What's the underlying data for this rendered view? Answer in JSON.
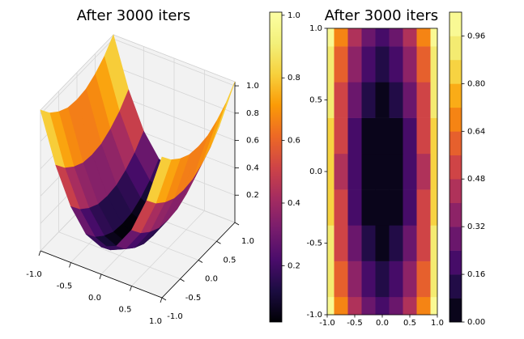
{
  "chart_data": [
    {
      "type": "surface3d",
      "title": "After 3000 iters",
      "colormap": "inferno",
      "x": [
        -1,
        -0.75,
        -0.5,
        -0.25,
        0,
        0.25,
        0.5,
        0.75,
        1
      ],
      "y": [
        -1,
        -0.75,
        -0.5,
        -0.25,
        0,
        0.25,
        0.5,
        0.75,
        1
      ],
      "z": [
        [
          1.03,
          0.67,
          0.41,
          0.25,
          0.2,
          0.25,
          0.41,
          0.67,
          1.03
        ],
        [
          0.94,
          0.58,
          0.32,
          0.16,
          0.11,
          0.16,
          0.32,
          0.58,
          0.94
        ],
        [
          0.88,
          0.52,
          0.26,
          0.1,
          0.05,
          0.1,
          0.26,
          0.52,
          0.88
        ],
        [
          0.84,
          0.48,
          0.22,
          0.06,
          0.01,
          0.06,
          0.22,
          0.48,
          0.84
        ],
        [
          0.83,
          0.47,
          0.21,
          0.05,
          0,
          0.05,
          0.21,
          0.47,
          0.83
        ],
        [
          0.84,
          0.48,
          0.22,
          0.06,
          0.01,
          0.06,
          0.22,
          0.48,
          0.84
        ],
        [
          0.88,
          0.52,
          0.26,
          0.1,
          0.05,
          0.1,
          0.26,
          0.52,
          0.88
        ],
        [
          0.94,
          0.58,
          0.32,
          0.16,
          0.11,
          0.16,
          0.32,
          0.58,
          0.94
        ],
        [
          1.03,
          0.67,
          0.41,
          0.25,
          0.2,
          0.25,
          0.41,
          0.67,
          1.03
        ]
      ],
      "xlim": [
        -1,
        1
      ],
      "ylim": [
        -1,
        1
      ],
      "zlim": [
        0,
        1.03
      ],
      "xticks": [
        {
          "value": -1,
          "label": "-1.0"
        },
        -0.5,
        {
          "value": 0,
          "label": "0.0"
        },
        0.5,
        {
          "value": 1,
          "label": "1.0"
        }
      ],
      "yticks": [
        {
          "value": -1,
          "label": "-1.0"
        },
        -0.5,
        {
          "value": 0,
          "label": "0.0"
        },
        0.5,
        {
          "value": 1,
          "label": "1.0"
        }
      ],
      "zticks": [
        0.2,
        0.4,
        0.6,
        0.8,
        {
          "value": 1,
          "label": "1.0"
        }
      ],
      "colorbar": {
        "lim": [
          0.02,
          1.01
        ],
        "ticks": [
          0.2,
          0.4,
          0.6,
          0.8,
          {
            "value": 1,
            "label": "1.0"
          }
        ]
      }
    },
    {
      "type": "contourf",
      "title": "After 3000 iters",
      "colormap": "inferno",
      "x": [
        -1,
        -0.75,
        -0.5,
        -0.25,
        0,
        0.25,
        0.5,
        0.75,
        1
      ],
      "y": [
        -1,
        -0.75,
        -0.5,
        -0.25,
        0,
        0.25,
        0.5,
        0.75,
        1
      ],
      "z": [
        [
          1.03,
          0.67,
          0.41,
          0.25,
          0.2,
          0.25,
          0.41,
          0.67,
          1.03
        ],
        [
          0.94,
          0.58,
          0.32,
          0.16,
          0.11,
          0.16,
          0.32,
          0.58,
          0.94
        ],
        [
          0.88,
          0.52,
          0.26,
          0.1,
          0.05,
          0.1,
          0.26,
          0.52,
          0.88
        ],
        [
          0.84,
          0.48,
          0.22,
          0.06,
          0.01,
          0.06,
          0.22,
          0.48,
          0.84
        ],
        [
          0.83,
          0.47,
          0.21,
          0.05,
          0,
          0.05,
          0.21,
          0.47,
          0.83
        ],
        [
          0.84,
          0.48,
          0.22,
          0.06,
          0.01,
          0.06,
          0.22,
          0.48,
          0.84
        ],
        [
          0.88,
          0.52,
          0.26,
          0.1,
          0.05,
          0.1,
          0.26,
          0.52,
          0.88
        ],
        [
          0.94,
          0.58,
          0.32,
          0.16,
          0.11,
          0.16,
          0.32,
          0.58,
          0.94
        ],
        [
          1.03,
          0.67,
          0.41,
          0.25,
          0.2,
          0.25,
          0.41,
          0.67,
          1.03
        ]
      ],
      "levels": [
        0,
        0.08,
        0.16,
        0.24,
        0.32,
        0.4,
        0.48,
        0.56,
        0.64,
        0.72,
        0.8,
        0.88,
        0.96,
        1.04
      ],
      "xlim": [
        -1,
        1
      ],
      "ylim": [
        -1,
        1
      ],
      "xticks": [
        {
          "value": -1,
          "label": "-1.0"
        },
        -0.5,
        {
          "value": 0,
          "label": "0.0"
        },
        0.5,
        {
          "value": 1,
          "label": "1.0"
        }
      ],
      "yticks": [
        {
          "value": -1,
          "label": "-1.0"
        },
        -0.5,
        {
          "value": 0,
          "label": "0.0"
        },
        0.5,
        {
          "value": 1,
          "label": "1.0"
        }
      ],
      "colorbar": {
        "ticks": [
          {
            "value": 0,
            "label": "0.00"
          },
          0.16,
          0.32,
          0.48,
          0.64,
          {
            "value": 0.8,
            "label": "0.80"
          },
          0.96
        ]
      }
    }
  ]
}
